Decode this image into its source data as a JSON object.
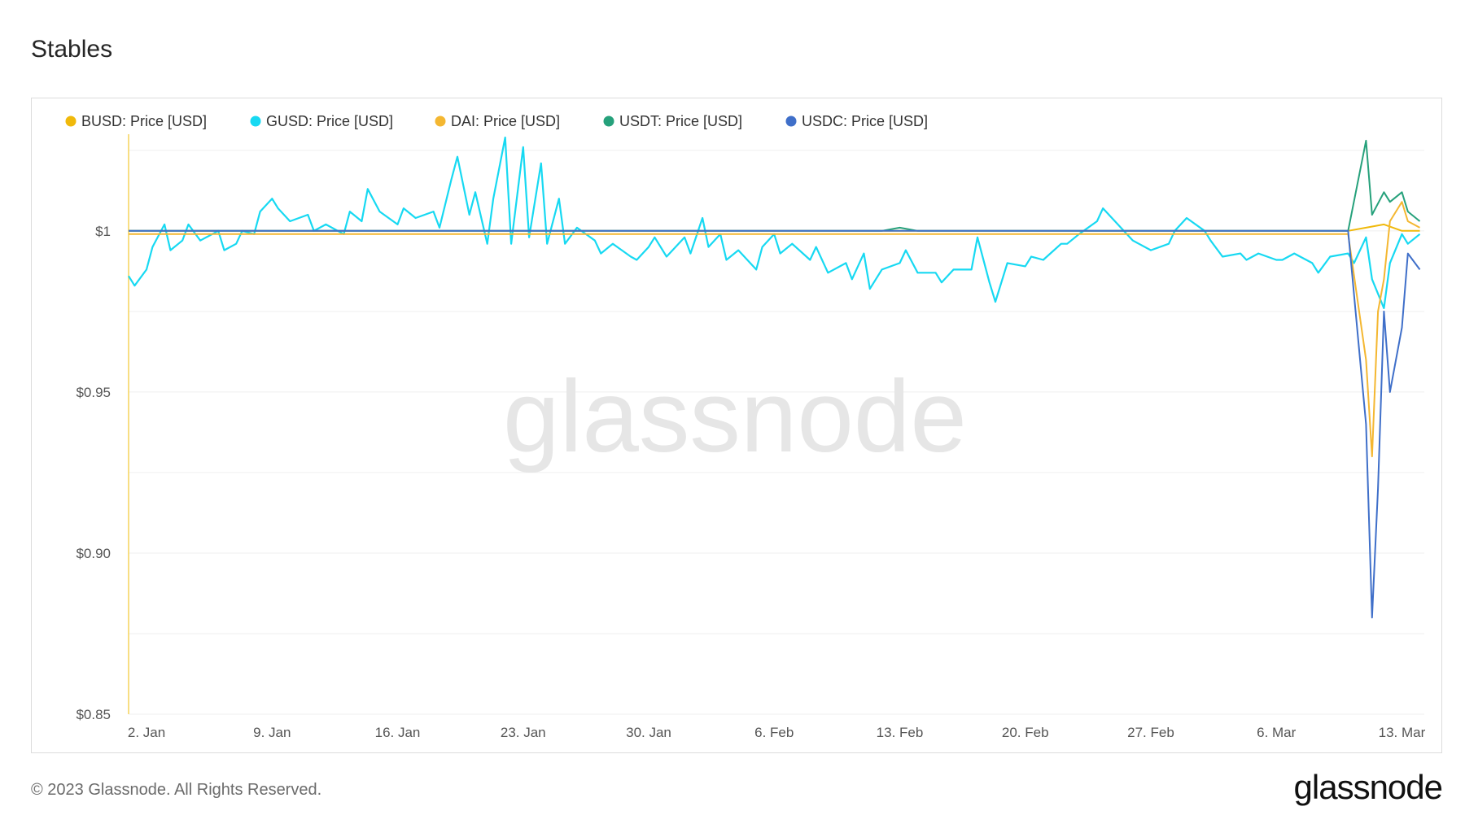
{
  "page": {
    "title": "Stables",
    "footer_copyright": "© 2023 Glassnode. All Rights Reserved.",
    "footer_logo": "glassnode",
    "watermark": "glassnode"
  },
  "chart_data": {
    "type": "line",
    "title": "Stables",
    "ylabel": "",
    "xlabel": "",
    "ylim": [
      0.85,
      1.03
    ],
    "grid": true,
    "legend_position": "top-left",
    "x_ticks": [
      "2. Jan",
      "9. Jan",
      "16. Jan",
      "23. Jan",
      "30. Jan",
      "6. Feb",
      "13. Feb",
      "20. Feb",
      "27. Feb",
      "6. Mar",
      "13. Mar"
    ],
    "y_ticks": [
      {
        "value": 1.0,
        "label": "$1"
      },
      {
        "value": 0.95,
        "label": "$0.95"
      },
      {
        "value": 0.9,
        "label": "$0.90"
      },
      {
        "value": 0.85,
        "label": "$0.85"
      }
    ],
    "x_start": "2023-01-01",
    "series": [
      {
        "name": "BUSD: Price [USD]",
        "color": "#f0b90b",
        "points": [
          [
            "2023-01-01",
            1.0
          ],
          [
            "2023-01-08",
            1.0
          ],
          [
            "2023-01-15",
            1.0
          ],
          [
            "2023-01-22",
            1.0
          ],
          [
            "2023-01-29",
            1.0
          ],
          [
            "2023-02-05",
            1.0
          ],
          [
            "2023-02-12",
            1.0
          ],
          [
            "2023-02-19",
            1.0
          ],
          [
            "2023-02-26",
            1.0
          ],
          [
            "2023-03-05",
            1.0
          ],
          [
            "2023-03-10",
            1.0
          ],
          [
            "2023-03-11",
            1.001
          ],
          [
            "2023-03-12",
            1.002
          ],
          [
            "2023-03-13",
            1.0
          ],
          [
            "2023-03-14",
            1.0
          ]
        ]
      },
      {
        "name": "GUSD: Price [USD]",
        "color": "#17d9f2",
        "points": [
          [
            "2023-01-01",
            0.986
          ],
          [
            "2023-01-01",
            0.983
          ],
          [
            "2023-01-02",
            0.988
          ],
          [
            "2023-01-02",
            0.995
          ],
          [
            "2023-01-03",
            1.002
          ],
          [
            "2023-01-03",
            0.994
          ],
          [
            "2023-01-04",
            0.997
          ],
          [
            "2023-01-04",
            1.002
          ],
          [
            "2023-01-05",
            0.997
          ],
          [
            "2023-01-06",
            1.0
          ],
          [
            "2023-01-06",
            0.994
          ],
          [
            "2023-01-07",
            0.996
          ],
          [
            "2023-01-07",
            1.0
          ],
          [
            "2023-01-08",
            0.999
          ],
          [
            "2023-01-08",
            1.006
          ],
          [
            "2023-01-09",
            1.01
          ],
          [
            "2023-01-09",
            1.007
          ],
          [
            "2023-01-10",
            1.003
          ],
          [
            "2023-01-11",
            1.005
          ],
          [
            "2023-01-11",
            1.0
          ],
          [
            "2023-01-12",
            1.002
          ],
          [
            "2023-01-13",
            0.999
          ],
          [
            "2023-01-13",
            1.006
          ],
          [
            "2023-01-14",
            1.003
          ],
          [
            "2023-01-14",
            1.013
          ],
          [
            "2023-01-15",
            1.006
          ],
          [
            "2023-01-16",
            1.002
          ],
          [
            "2023-01-16",
            1.007
          ],
          [
            "2023-01-17",
            1.004
          ],
          [
            "2023-01-18",
            1.006
          ],
          [
            "2023-01-18",
            1.001
          ],
          [
            "2023-01-19",
            1.016
          ],
          [
            "2023-01-19",
            1.023
          ],
          [
            "2023-01-20",
            1.005
          ],
          [
            "2023-01-20",
            1.012
          ],
          [
            "2023-01-21",
            0.996
          ],
          [
            "2023-01-21",
            1.01
          ],
          [
            "2023-01-22",
            1.029
          ],
          [
            "2023-01-22",
            0.996
          ],
          [
            "2023-01-23",
            1.026
          ],
          [
            "2023-01-23",
            0.998
          ],
          [
            "2023-01-24",
            1.021
          ],
          [
            "2023-01-24",
            0.996
          ],
          [
            "2023-01-25",
            1.01
          ],
          [
            "2023-01-25",
            0.996
          ],
          [
            "2023-01-26",
            1.001
          ],
          [
            "2023-01-27",
            0.997
          ],
          [
            "2023-01-27",
            0.993
          ],
          [
            "2023-01-28",
            0.996
          ],
          [
            "2023-01-29",
            0.992
          ],
          [
            "2023-01-29",
            0.991
          ],
          [
            "2023-01-30",
            0.995
          ],
          [
            "2023-01-30",
            0.998
          ],
          [
            "2023-01-31",
            0.992
          ],
          [
            "2023-02-01",
            0.998
          ],
          [
            "2023-02-01",
            0.993
          ],
          [
            "2023-02-02",
            1.004
          ],
          [
            "2023-02-02",
            0.995
          ],
          [
            "2023-02-03",
            0.999
          ],
          [
            "2023-02-03",
            0.991
          ],
          [
            "2023-02-04",
            0.994
          ],
          [
            "2023-02-05",
            0.988
          ],
          [
            "2023-02-05",
            0.995
          ],
          [
            "2023-02-06",
            0.999
          ],
          [
            "2023-02-06",
            0.993
          ],
          [
            "2023-02-07",
            0.996
          ],
          [
            "2023-02-08",
            0.991
          ],
          [
            "2023-02-08",
            0.995
          ],
          [
            "2023-02-09",
            0.987
          ],
          [
            "2023-02-10",
            0.99
          ],
          [
            "2023-02-10",
            0.985
          ],
          [
            "2023-02-11",
            0.993
          ],
          [
            "2023-02-11",
            0.982
          ],
          [
            "2023-02-12",
            0.988
          ],
          [
            "2023-02-13",
            0.99
          ],
          [
            "2023-02-13",
            0.994
          ],
          [
            "2023-02-14",
            0.987
          ],
          [
            "2023-02-15",
            0.987
          ],
          [
            "2023-02-15",
            0.984
          ],
          [
            "2023-02-16",
            0.988
          ],
          [
            "2023-02-17",
            0.988
          ],
          [
            "2023-02-17",
            0.998
          ],
          [
            "2023-02-18",
            0.984
          ],
          [
            "2023-02-18",
            0.978
          ],
          [
            "2023-02-19",
            0.99
          ],
          [
            "2023-02-20",
            0.989
          ],
          [
            "2023-02-20",
            0.992
          ],
          [
            "2023-02-21",
            0.991
          ],
          [
            "2023-02-22",
            0.996
          ],
          [
            "2023-02-22",
            0.996
          ],
          [
            "2023-02-23",
            0.999
          ],
          [
            "2023-02-24",
            1.003
          ],
          [
            "2023-02-24",
            1.007
          ],
          [
            "2023-02-25",
            1.003
          ],
          [
            "2023-02-26",
            0.997
          ],
          [
            "2023-02-26",
            0.996
          ],
          [
            "2023-02-27",
            0.994
          ],
          [
            "2023-02-28",
            0.996
          ],
          [
            "2023-02-28",
            1.0
          ],
          [
            "2023-03-01",
            1.004
          ],
          [
            "2023-03-02",
            1.0
          ],
          [
            "2023-03-02",
            0.997
          ],
          [
            "2023-03-03",
            0.992
          ],
          [
            "2023-03-04",
            0.993
          ],
          [
            "2023-03-04",
            0.991
          ],
          [
            "2023-03-05",
            0.993
          ],
          [
            "2023-03-06",
            0.991
          ],
          [
            "2023-03-06",
            0.991
          ],
          [
            "2023-03-07",
            0.993
          ],
          [
            "2023-03-08",
            0.99
          ],
          [
            "2023-03-08",
            0.987
          ],
          [
            "2023-03-09",
            0.992
          ],
          [
            "2023-03-10",
            0.993
          ],
          [
            "2023-03-10",
            0.99
          ],
          [
            "2023-03-11",
            0.998
          ],
          [
            "2023-03-11",
            0.985
          ],
          [
            "2023-03-12",
            0.976
          ],
          [
            "2023-03-12",
            0.99
          ],
          [
            "2023-03-13",
            0.999
          ],
          [
            "2023-03-13",
            0.996
          ],
          [
            "2023-03-14",
            0.999
          ]
        ]
      },
      {
        "name": "DAI: Price [USD]",
        "color": "#f4b731",
        "points": [
          [
            "2023-01-01",
            0.999
          ],
          [
            "2023-02-12",
            0.999
          ],
          [
            "2023-03-10",
            0.999
          ],
          [
            "2023-03-11",
            0.96
          ],
          [
            "2023-03-11",
            0.93
          ],
          [
            "2023-03-11",
            0.975
          ],
          [
            "2023-03-12",
            0.985
          ],
          [
            "2023-03-12",
            1.003
          ],
          [
            "2023-03-13",
            1.009
          ],
          [
            "2023-03-13",
            1.003
          ],
          [
            "2023-03-14",
            1.001
          ]
        ]
      },
      {
        "name": "USDT: Price [USD]",
        "color": "#26a17b",
        "points": [
          [
            "2023-01-01",
            1.0
          ],
          [
            "2023-02-12",
            1.0
          ],
          [
            "2023-02-13",
            1.001
          ],
          [
            "2023-02-14",
            1.0
          ],
          [
            "2023-03-10",
            1.0
          ],
          [
            "2023-03-11",
            1.028
          ],
          [
            "2023-03-11",
            1.005
          ],
          [
            "2023-03-12",
            1.012
          ],
          [
            "2023-03-12",
            1.009
          ],
          [
            "2023-03-13",
            1.012
          ],
          [
            "2023-03-13",
            1.006
          ],
          [
            "2023-03-14",
            1.003
          ]
        ]
      },
      {
        "name": "USDC: Price [USD]",
        "color": "#3f6fc9",
        "points": [
          [
            "2023-01-01",
            1.0
          ],
          [
            "2023-02-12",
            1.0
          ],
          [
            "2023-03-10",
            1.0
          ],
          [
            "2023-03-11",
            0.94
          ],
          [
            "2023-03-11",
            0.88
          ],
          [
            "2023-03-11",
            0.92
          ],
          [
            "2023-03-12",
            0.975
          ],
          [
            "2023-03-12",
            0.95
          ],
          [
            "2023-03-13",
            0.97
          ],
          [
            "2023-03-13",
            0.993
          ],
          [
            "2023-03-14",
            0.988
          ]
        ]
      }
    ]
  }
}
